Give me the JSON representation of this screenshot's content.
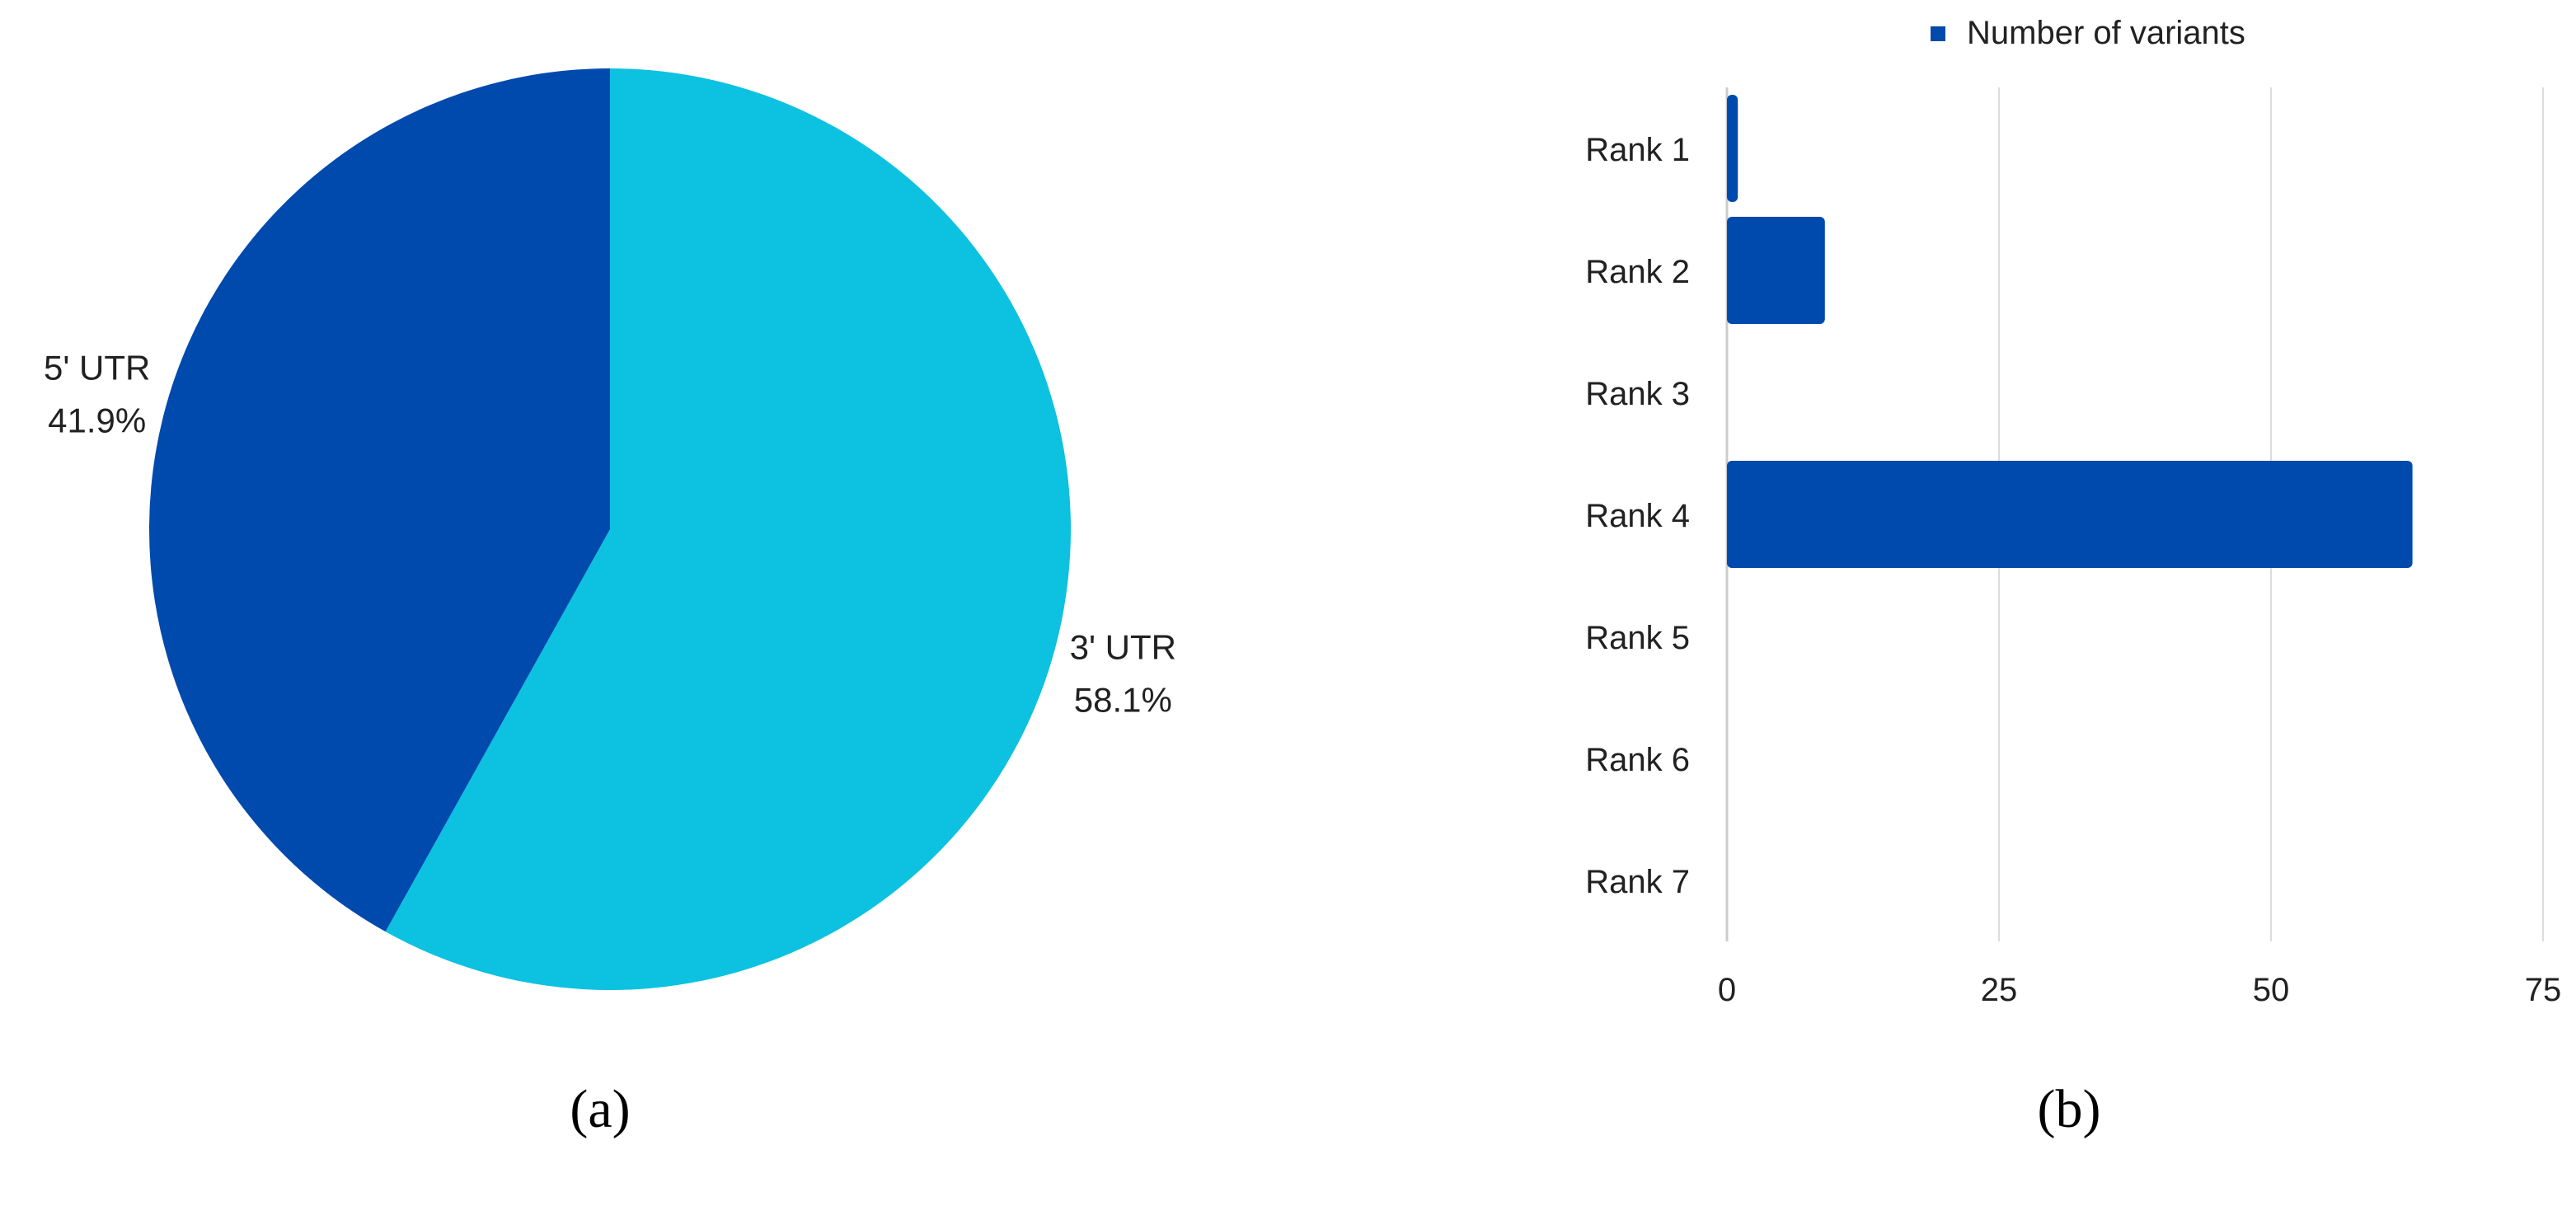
{
  "colors": {
    "dark_blue": "#004AAD",
    "light_blue": "#0DC1E0",
    "text": "#212121",
    "grid": "#DCDCDC"
  },
  "chart_data": [
    {
      "type": "pie",
      "panel": "(a)",
      "slices": [
        {
          "label": "3' UTR",
          "value": 58.1,
          "percent_label": "58.1%",
          "color": "#0DC1E0"
        },
        {
          "label": "5' UTR",
          "value": 41.9,
          "percent_label": "41.9%",
          "color": "#004AAD"
        }
      ]
    },
    {
      "type": "bar",
      "orientation": "horizontal",
      "panel": "(b)",
      "legend": {
        "label": "Number of variants",
        "position": "top"
      },
      "categories": [
        "Rank 1",
        "Rank 2",
        "Rank 3",
        "Rank 4",
        "Rank 5",
        "Rank 6",
        "Rank 7"
      ],
      "series": [
        {
          "name": "Number of variants",
          "values": [
            1,
            9,
            0,
            63,
            0,
            0,
            0
          ],
          "color": "#004AAD"
        }
      ],
      "xlim": [
        0,
        75
      ],
      "xticks": [
        0,
        25,
        50,
        75
      ],
      "grid": true
    }
  ]
}
